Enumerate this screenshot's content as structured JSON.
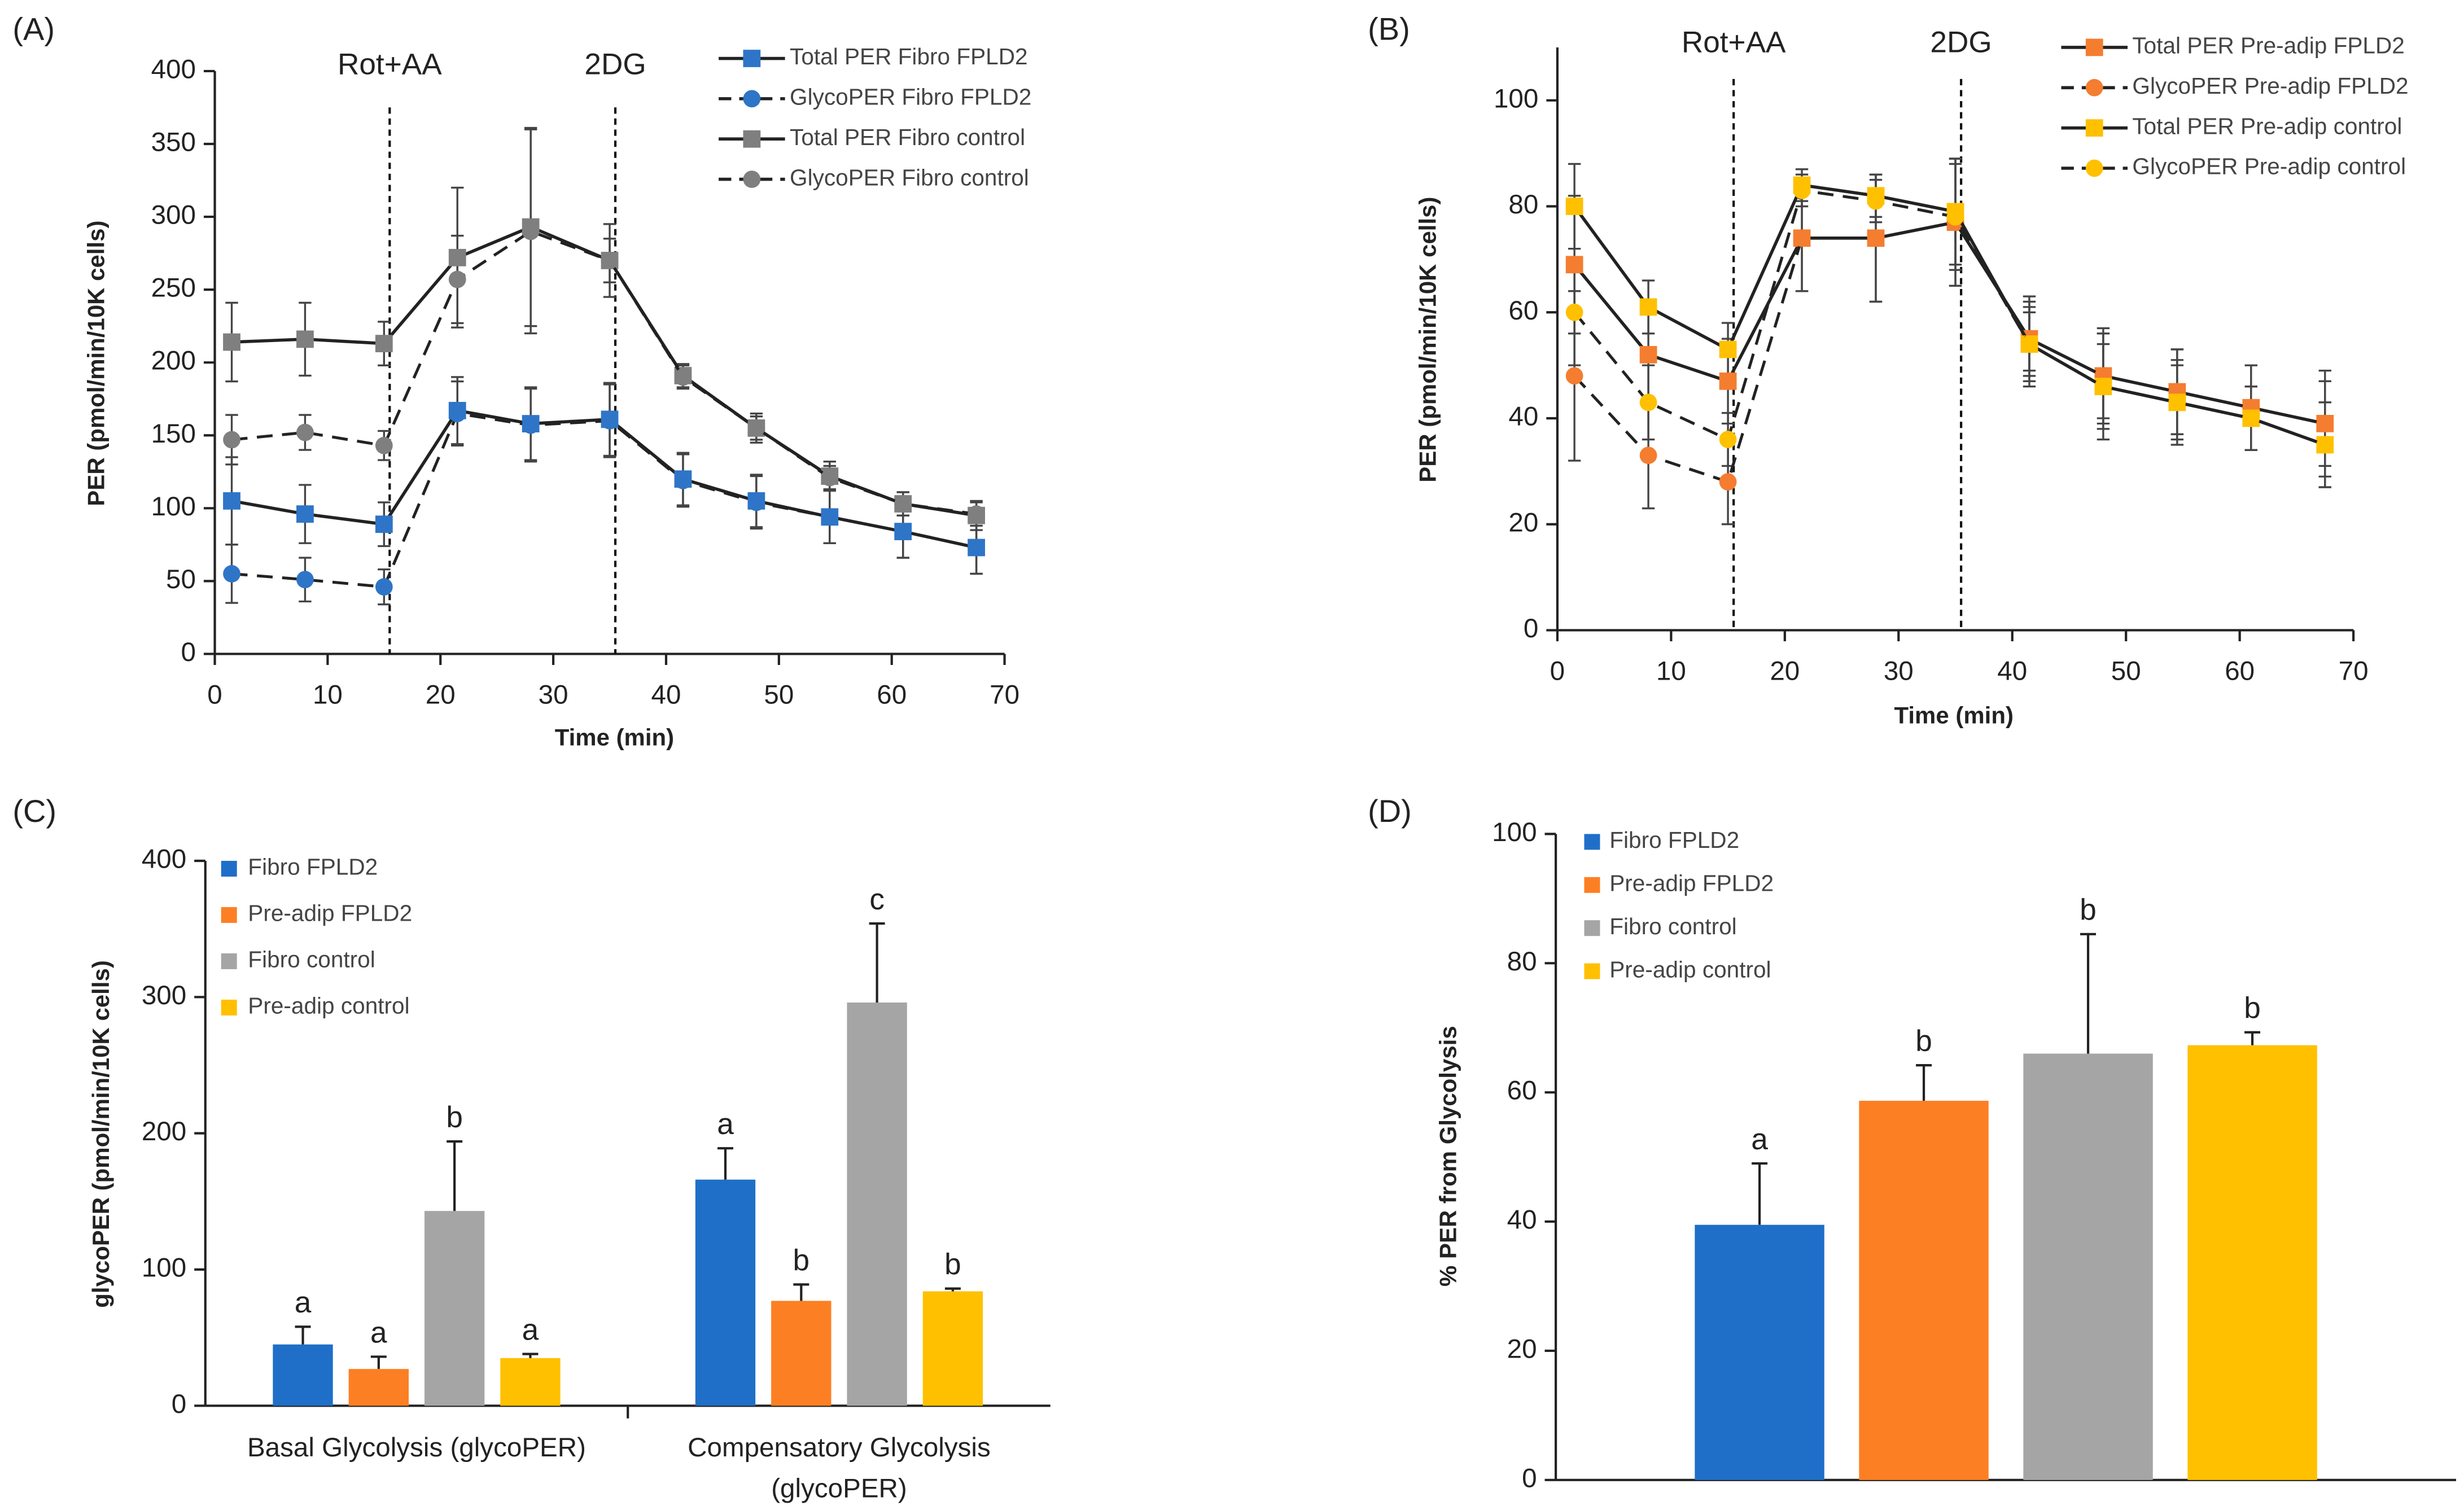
{
  "chart_data": [
    {
      "type": "line",
      "panel_label": "(A)",
      "x_label": "Time (min)",
      "y_label": "PER (pmol/min/10K cells)",
      "x": [
        1.5,
        8,
        15,
        21.5,
        28,
        35,
        41.5,
        48,
        54.5,
        61,
        67.5
      ],
      "xlim": [
        0,
        70
      ],
      "xticks": [
        0,
        10,
        20,
        30,
        40,
        50,
        60,
        70
      ],
      "ylim": [
        0,
        400
      ],
      "yticks": [
        0,
        50,
        100,
        150,
        200,
        250,
        300,
        350,
        400
      ],
      "annotations": [
        {
          "text": "Rot+AA",
          "x": 15.5
        },
        {
          "text": "2DG",
          "x": 35.5
        }
      ],
      "series": [
        {
          "name": "Total PER Fibro FPLD2",
          "color": "#2e75c8",
          "marker": "square",
          "dashed": false,
          "values": [
            105,
            96,
            89,
            167,
            158,
            161,
            120,
            105,
            94,
            84,
            73
          ],
          "errors": [
            30,
            20,
            15,
            23,
            25,
            25,
            18,
            18,
            18,
            18,
            18
          ]
        },
        {
          "name": "GlycoPER Fibro FPLD2",
          "color": "#2e75c8",
          "marker": "circle",
          "dashed": true,
          "values": [
            55,
            51,
            46,
            165,
            157,
            160,
            119,
            104,
            94,
            84,
            73
          ],
          "errors": [
            20,
            15,
            12,
            22,
            25,
            25,
            18,
            18,
            18,
            18,
            18
          ]
        },
        {
          "name": "Total PER Fibro control",
          "color": "#7f7f7f",
          "marker": "square",
          "dashed": false,
          "values": [
            214,
            216,
            213,
            272,
            293,
            270,
            191,
            155,
            122,
            103,
            95
          ],
          "errors": [
            27,
            25,
            15,
            48,
            68,
            25,
            8,
            10,
            10,
            8,
            10
          ]
        },
        {
          "name": "GlycoPER Fibro control",
          "color": "#7f7f7f",
          "marker": "circle",
          "dashed": true,
          "values": [
            147,
            152,
            143,
            257,
            290,
            270,
            190,
            155,
            121,
            103,
            96
          ],
          "errors": [
            17,
            12,
            10,
            30,
            70,
            15,
            8,
            8,
            8,
            8,
            8
          ]
        }
      ]
    },
    {
      "type": "line",
      "panel_label": "(B)",
      "x_label": "Time (min)",
      "y_label": "PER (pmol/min/10K cells)",
      "x": [
        1.5,
        8,
        15,
        21.5,
        28,
        35,
        41.5,
        48,
        54.5,
        61,
        67.5
      ],
      "xlim": [
        0,
        70
      ],
      "xticks": [
        0,
        10,
        20,
        30,
        40,
        50,
        60,
        70
      ],
      "ylim": [
        0,
        110
      ],
      "yticks": [
        0,
        20,
        40,
        60,
        80,
        100
      ],
      "annotations": [
        {
          "text": "Rot+AA",
          "x": 15.5
        },
        {
          "text": "2DG",
          "x": 35.5
        }
      ],
      "series": [
        {
          "name": "Total PER Pre-adip FPLD2",
          "color": "#f47d30",
          "marker": "square",
          "dashed": false,
          "values": [
            69,
            52,
            47,
            74,
            74,
            77,
            55,
            48,
            45,
            42,
            39
          ],
          "errors": [
            13,
            8,
            8,
            10,
            12,
            12,
            8,
            8,
            8,
            8,
            10
          ]
        },
        {
          "name": "GlycoPER Pre-adip FPLD2",
          "color": "#f47d30",
          "marker": "circle",
          "dashed": true,
          "values": [
            48,
            33,
            28,
            74,
            74,
            77,
            55,
            48,
            45,
            42,
            39
          ],
          "errors": [
            16,
            10,
            8,
            10,
            12,
            12,
            6,
            9,
            8,
            8,
            8
          ]
        },
        {
          "name": "Total PER Pre-adip control",
          "color": "#ffc000",
          "marker": "square",
          "dashed": false,
          "values": [
            80,
            61,
            53,
            84,
            82,
            79,
            54,
            46,
            43,
            40,
            35
          ],
          "errors": [
            8,
            5,
            5,
            3,
            4,
            10,
            8,
            10,
            8,
            6,
            8
          ]
        },
        {
          "name": "GlycoPER Pre-adip control",
          "color": "#ffc000",
          "marker": "circle",
          "dashed": true,
          "values": [
            60,
            43,
            36,
            83,
            81,
            78,
            54,
            46,
            43,
            40,
            35
          ],
          "errors": [
            10,
            7,
            5,
            3,
            4,
            10,
            6,
            8,
            7,
            6,
            8
          ]
        }
      ]
    },
    {
      "type": "bar",
      "panel_label": "(C)",
      "y_label": "glycoPER (pmol/min/10K cells)",
      "categories": [
        "Basal Glycolysis (glycoPER)",
        "Compensatory Glycolysis (glycoPER)"
      ],
      "ylim": [
        0,
        400
      ],
      "yticks": [
        0,
        100,
        200,
        300,
        400
      ],
      "series": [
        {
          "name": "Fibro FPLD2",
          "color": "#1f6fc8",
          "values": [
            45,
            166
          ],
          "errors": [
            13,
            23
          ],
          "letters": [
            "a",
            "a"
          ]
        },
        {
          "name": "Pre-adip FPLD2",
          "color": "#fd7f23",
          "values": [
            27,
            77
          ],
          "errors": [
            9,
            12
          ],
          "letters": [
            "a",
            "b"
          ]
        },
        {
          "name": "Fibro control",
          "color": "#a5a5a5",
          "values": [
            143,
            296
          ],
          "errors": [
            51,
            58
          ],
          "letters": [
            "b",
            "c"
          ]
        },
        {
          "name": "Pre-adip control",
          "color": "#ffc000",
          "values": [
            35,
            84
          ],
          "errors": [
            3,
            2
          ],
          "letters": [
            "a",
            "b"
          ]
        }
      ]
    },
    {
      "type": "bar",
      "panel_label": "(D)",
      "y_label": "% PER from Glycolysis",
      "categories": [
        null
      ],
      "ylim": [
        0,
        100
      ],
      "yticks": [
        0,
        20,
        40,
        60,
        80,
        100
      ],
      "series": [
        {
          "name": "Fibro FPLD2",
          "color": "#1f6fc8",
          "values": [
            39.5
          ],
          "errors": [
            9.5
          ],
          "letters": [
            "a"
          ]
        },
        {
          "name": "Pre-adip FPLD2",
          "color": "#fd7f23",
          "values": [
            58.7
          ],
          "errors": [
            5.5
          ],
          "letters": [
            "b"
          ]
        },
        {
          "name": "Fibro control",
          "color": "#a5a5a5",
          "values": [
            66
          ],
          "errors": [
            18.5
          ],
          "letters": [
            "b"
          ]
        },
        {
          "name": "Pre-adip control",
          "color": "#ffc000",
          "values": [
            67.3
          ],
          "errors": [
            2
          ],
          "letters": [
            "b"
          ]
        }
      ]
    }
  ]
}
